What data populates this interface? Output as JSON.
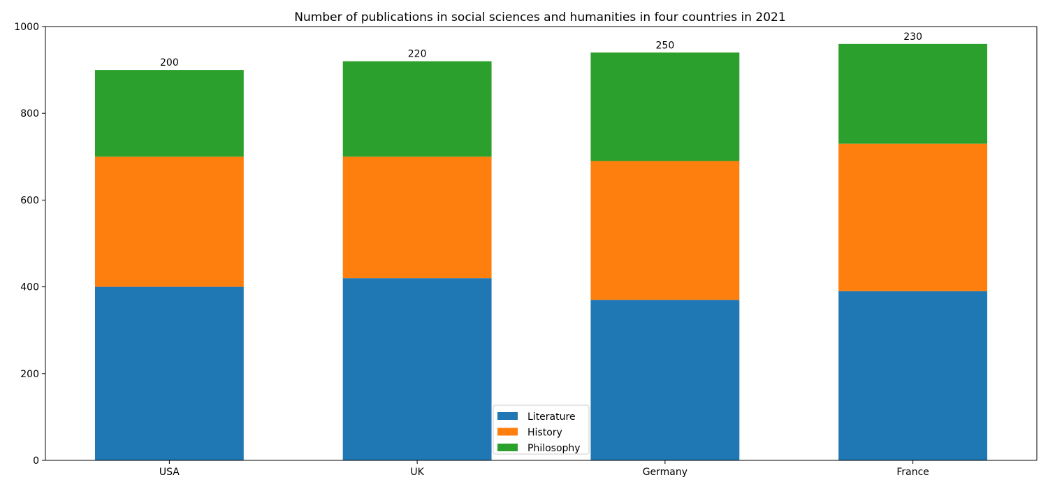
{
  "chart_data": {
    "type": "bar",
    "stacked": true,
    "title": "Number of publications in social sciences and humanities in four countries in 2021",
    "xlabel": "",
    "ylabel": "",
    "categories": [
      "USA",
      "UK",
      "Germany",
      "France"
    ],
    "series": [
      {
        "name": "Literature",
        "color": "#1f77b4",
        "values": [
          400,
          420,
          370,
          390
        ]
      },
      {
        "name": "History",
        "color": "#ff7f0e",
        "values": [
          300,
          280,
          320,
          340
        ]
      },
      {
        "name": "Philosophy",
        "color": "#2ca02c",
        "values": [
          200,
          220,
          250,
          230
        ]
      }
    ],
    "ylim": [
      0,
      1000
    ],
    "yticks": [
      0,
      200,
      400,
      600,
      800,
      1000
    ],
    "grid": false,
    "legend_position": "bottom-center",
    "data_labels": true
  }
}
